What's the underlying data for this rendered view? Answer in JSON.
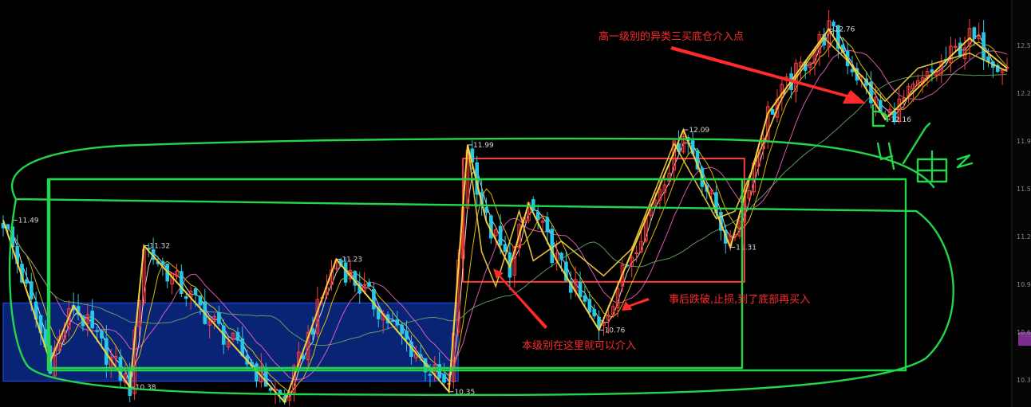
{
  "chart_data": {
    "type": "candlestick",
    "title": "",
    "price_range": [
      10.28,
      12.9
    ],
    "colors": {
      "up": "#ff3b3b",
      "down": "#27c7e6",
      "zigzag": "#f4d03f",
      "ma_fast": "#ffffff",
      "ma_mid": "#ffd700",
      "ma_slow": "#ff66cc",
      "ma_long": "#6fae6f",
      "handdrawn": "#22d64a",
      "annotation": "#ff2a2a",
      "zone_fill": "#0a2a8a",
      "zone_line": "#1f4fff",
      "axis_highlight": "#7a2f8f"
    },
    "price_labels": [
      {
        "text": "11.49",
        "bar": 2,
        "price": 11.49
      },
      {
        "text": "11.32",
        "bar": 30,
        "price": 11.32
      },
      {
        "text": "10.38",
        "bar": 27,
        "price": 10.38
      },
      {
        "text": "11.23",
        "bar": 71,
        "price": 11.23
      },
      {
        "text": "10.35",
        "bar": 95,
        "price": 10.35
      },
      {
        "text": "11.99",
        "bar": 99,
        "price": 11.99
      },
      {
        "text": "10.76",
        "bar": 127,
        "price": 10.76
      },
      {
        "text": "12.09",
        "bar": 145,
        "price": 12.09
      },
      {
        "text": "11.31",
        "bar": 155,
        "price": 11.31
      },
      {
        "text": "12.76",
        "bar": 176,
        "price": 12.76
      },
      {
        "text": "12.16",
        "bar": 188,
        "price": 12.16
      }
    ],
    "right_axis_ticks": [
      "12.5",
      "12.2",
      "11.9",
      "11.5",
      "11.2",
      "10.9",
      "10.6",
      "10.3"
    ],
    "zigzag_points": [
      [
        0,
        11.49
      ],
      [
        10,
        10.55
      ],
      [
        15,
        10.92
      ],
      [
        27,
        10.38
      ],
      [
        30,
        11.32
      ],
      [
        60,
        10.28
      ],
      [
        71,
        11.23
      ],
      [
        95,
        10.35
      ],
      [
        99,
        11.99
      ],
      [
        103,
        11.48
      ],
      [
        108,
        11.18
      ],
      [
        112,
        11.6
      ],
      [
        118,
        11.22
      ],
      [
        127,
        10.76
      ],
      [
        145,
        12.09
      ],
      [
        155,
        11.31
      ],
      [
        163,
        12.2
      ],
      [
        176,
        12.76
      ],
      [
        188,
        12.16
      ],
      [
        206,
        12.7
      ],
      [
        214,
        12.5
      ]
    ],
    "secondary_zigzag": [
      [
        96,
        10.72
      ],
      [
        99,
        11.99
      ],
      [
        102,
        11.28
      ],
      [
        105,
        11.05
      ],
      [
        110,
        11.55
      ],
      [
        113,
        11.22
      ],
      [
        119,
        11.35
      ],
      [
        128,
        11.12
      ],
      [
        134,
        11.3
      ],
      [
        143,
        12.0
      ],
      [
        152,
        11.5
      ],
      [
        156,
        11.55
      ],
      [
        166,
        12.3
      ],
      [
        175,
        12.7
      ],
      [
        180,
        12.55
      ],
      [
        188,
        12.28
      ],
      [
        195,
        12.5
      ],
      [
        206,
        12.6
      ],
      [
        214,
        12.48
      ]
    ],
    "boxes": [
      {
        "name": "hub-box-blue",
        "bar_start": 0,
        "bar_end": 97,
        "price_top": 10.94,
        "price_bottom": 10.42
      },
      {
        "name": "hub-box-red",
        "bar_start": 98,
        "bar_end": 158,
        "price_top": 11.9,
        "price_bottom": 11.08
      }
    ],
    "annotations": [
      {
        "text": "高一级别的异类三买底仓介入点"
      },
      {
        "text": "事后跌破,止损,到了底部再买入"
      },
      {
        "text": "本级别在这里就可以介入"
      }
    ],
    "handwritten_note": "也大佰已"
  }
}
